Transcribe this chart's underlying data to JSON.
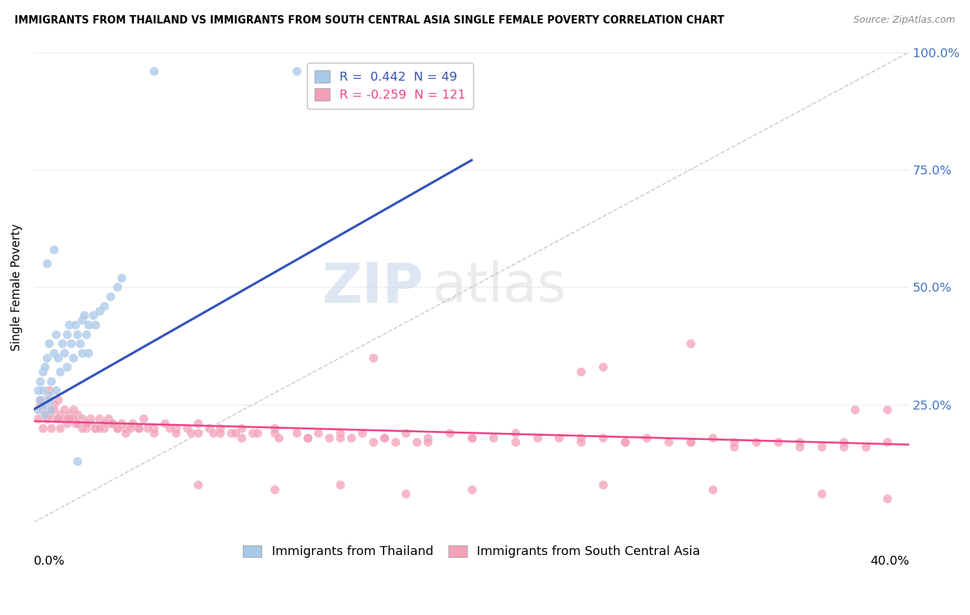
{
  "title": "IMMIGRANTS FROM THAILAND VS IMMIGRANTS FROM SOUTH CENTRAL ASIA SINGLE FEMALE POVERTY CORRELATION CHART",
  "source": "Source: ZipAtlas.com",
  "ylabel": "Single Female Poverty",
  "legend1_label": "Immigrants from Thailand",
  "legend2_label": "Immigrants from South Central Asia",
  "R1": 0.442,
  "N1": 49,
  "R2": -0.259,
  "N2": 121,
  "color_thailand": "#A8C8E8",
  "color_sca": "#F4A0B8",
  "color_trend1": "#3355BB",
  "color_trend2": "#EE4488",
  "color_diag": "#C0C0C0",
  "watermark_zip": "ZIP",
  "watermark_atlas": "atlas",
  "background_color": "#FFFFFF",
  "xlim": [
    0.0,
    0.4
  ],
  "ylim": [
    0.0,
    1.0
  ],
  "thailand_x": [
    0.002,
    0.003,
    0.004,
    0.005,
    0.005,
    0.006,
    0.007,
    0.007,
    0.008,
    0.009,
    0.01,
    0.01,
    0.011,
    0.012,
    0.013,
    0.014,
    0.015,
    0.015,
    0.016,
    0.017,
    0.018,
    0.019,
    0.02,
    0.021,
    0.022,
    0.022,
    0.023,
    0.024,
    0.025,
    0.025,
    0.027,
    0.028,
    0.03,
    0.032,
    0.035,
    0.038,
    0.04,
    0.002,
    0.003,
    0.004,
    0.005,
    0.007,
    0.008,
    0.055,
    0.12,
    0.18,
    0.006,
    0.009,
    0.02
  ],
  "thailand_y": [
    0.28,
    0.3,
    0.32,
    0.25,
    0.33,
    0.35,
    0.27,
    0.38,
    0.3,
    0.36,
    0.28,
    0.4,
    0.35,
    0.32,
    0.38,
    0.36,
    0.4,
    0.33,
    0.42,
    0.38,
    0.35,
    0.42,
    0.4,
    0.38,
    0.43,
    0.36,
    0.44,
    0.4,
    0.42,
    0.36,
    0.44,
    0.42,
    0.45,
    0.46,
    0.48,
    0.5,
    0.52,
    0.24,
    0.26,
    0.28,
    0.23,
    0.26,
    0.24,
    0.96,
    0.96,
    0.96,
    0.55,
    0.58,
    0.13
  ],
  "sca_x": [
    0.002,
    0.003,
    0.004,
    0.005,
    0.005,
    0.006,
    0.007,
    0.008,
    0.008,
    0.009,
    0.01,
    0.011,
    0.012,
    0.012,
    0.013,
    0.014,
    0.015,
    0.016,
    0.017,
    0.018,
    0.019,
    0.02,
    0.022,
    0.024,
    0.025,
    0.026,
    0.028,
    0.03,
    0.032,
    0.034,
    0.035,
    0.038,
    0.04,
    0.042,
    0.045,
    0.048,
    0.05,
    0.055,
    0.06,
    0.065,
    0.07,
    0.075,
    0.08,
    0.085,
    0.09,
    0.095,
    0.1,
    0.11,
    0.12,
    0.13,
    0.14,
    0.15,
    0.16,
    0.17,
    0.18,
    0.19,
    0.2,
    0.21,
    0.22,
    0.23,
    0.24,
    0.25,
    0.26,
    0.27,
    0.28,
    0.29,
    0.3,
    0.31,
    0.32,
    0.33,
    0.34,
    0.35,
    0.36,
    0.37,
    0.38,
    0.39,
    0.003,
    0.006,
    0.009,
    0.015,
    0.018,
    0.022,
    0.028,
    0.032,
    0.038,
    0.042,
    0.048,
    0.055,
    0.065,
    0.075,
    0.085,
    0.095,
    0.11,
    0.125,
    0.14,
    0.16,
    0.18,
    0.2,
    0.22,
    0.25,
    0.27,
    0.3,
    0.32,
    0.35,
    0.37,
    0.004,
    0.007,
    0.011,
    0.016,
    0.02,
    0.024,
    0.03,
    0.036,
    0.044,
    0.052,
    0.062,
    0.072,
    0.082,
    0.092,
    0.102,
    0.112,
    0.125,
    0.135,
    0.145,
    0.155,
    0.165,
    0.175
  ],
  "sca_y": [
    0.22,
    0.25,
    0.2,
    0.26,
    0.23,
    0.22,
    0.28,
    0.24,
    0.2,
    0.25,
    0.22,
    0.26,
    0.2,
    0.23,
    0.22,
    0.24,
    0.21,
    0.23,
    0.22,
    0.24,
    0.21,
    0.23,
    0.22,
    0.2,
    0.21,
    0.22,
    0.2,
    0.22,
    0.2,
    0.22,
    0.21,
    0.2,
    0.21,
    0.2,
    0.21,
    0.2,
    0.22,
    0.2,
    0.21,
    0.2,
    0.2,
    0.21,
    0.2,
    0.2,
    0.19,
    0.2,
    0.19,
    0.2,
    0.19,
    0.19,
    0.19,
    0.19,
    0.18,
    0.19,
    0.18,
    0.19,
    0.18,
    0.18,
    0.19,
    0.18,
    0.18,
    0.18,
    0.18,
    0.17,
    0.18,
    0.17,
    0.17,
    0.18,
    0.17,
    0.17,
    0.17,
    0.17,
    0.16,
    0.17,
    0.16,
    0.17,
    0.26,
    0.22,
    0.24,
    0.22,
    0.22,
    0.2,
    0.2,
    0.21,
    0.2,
    0.19,
    0.2,
    0.19,
    0.19,
    0.19,
    0.19,
    0.18,
    0.19,
    0.18,
    0.18,
    0.18,
    0.17,
    0.18,
    0.17,
    0.17,
    0.17,
    0.17,
    0.16,
    0.16,
    0.16,
    0.24,
    0.23,
    0.22,
    0.22,
    0.21,
    0.21,
    0.2,
    0.21,
    0.2,
    0.2,
    0.2,
    0.19,
    0.19,
    0.19,
    0.19,
    0.18,
    0.18,
    0.18,
    0.18,
    0.17,
    0.17,
    0.17
  ],
  "sca_high_x": [
    0.3,
    0.26,
    0.375,
    0.39,
    0.155,
    0.25
  ],
  "sca_high_y": [
    0.38,
    0.33,
    0.24,
    0.24,
    0.35,
    0.32
  ],
  "sca_low_x": [
    0.14,
    0.2,
    0.26,
    0.31,
    0.36,
    0.39,
    0.075,
    0.11,
    0.17
  ],
  "sca_low_y": [
    0.08,
    0.07,
    0.08,
    0.07,
    0.06,
    0.05,
    0.08,
    0.07,
    0.06
  ],
  "trend1_x0": 0.0,
  "trend1_y0": 0.24,
  "trend1_x1": 0.2,
  "trend1_y1": 0.77,
  "trend2_x0": 0.0,
  "trend2_y0": 0.215,
  "trend2_x1": 0.4,
  "trend2_y1": 0.165
}
